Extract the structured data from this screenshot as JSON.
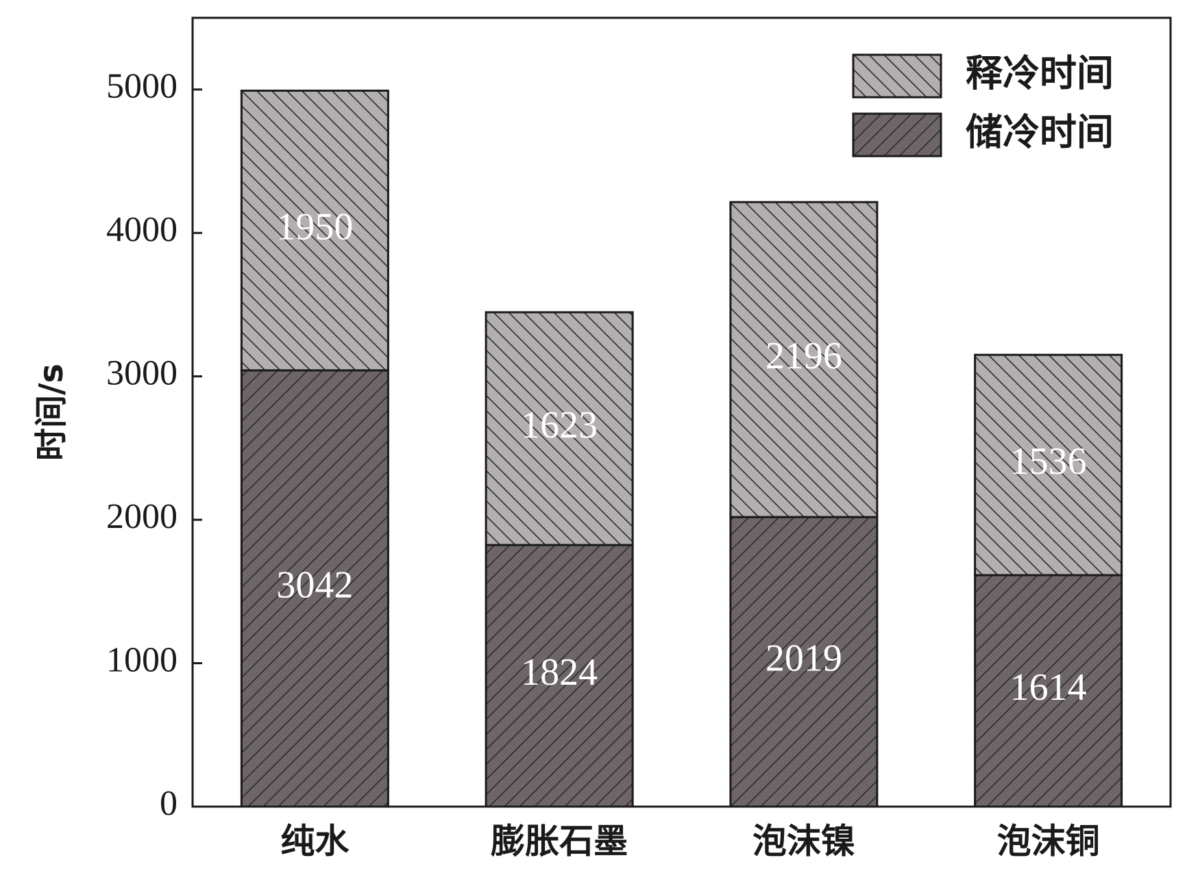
{
  "chart_data": {
    "type": "bar",
    "stacked": true,
    "categories": [
      "纯水",
      "膨胀石墨",
      "泡沫镍",
      "泡沫铜"
    ],
    "series": [
      {
        "name": "储冷时间",
        "values": [
          3042,
          1824,
          2019,
          1614
        ],
        "color": "#6e6567"
      },
      {
        "name": "释冷时间",
        "values": [
          1950,
          1623,
          2196,
          1536
        ],
        "color": "#b3aeaf"
      }
    ],
    "title": "",
    "xlabel": "",
    "ylabel": "时间/s",
    "ylim": [
      0,
      5500
    ],
    "yticks": [
      0,
      1000,
      2000,
      3000,
      4000,
      5000
    ],
    "grid": false,
    "legend_position": "top-right",
    "legend_order": [
      "释冷时间",
      "储冷时间"
    ]
  }
}
